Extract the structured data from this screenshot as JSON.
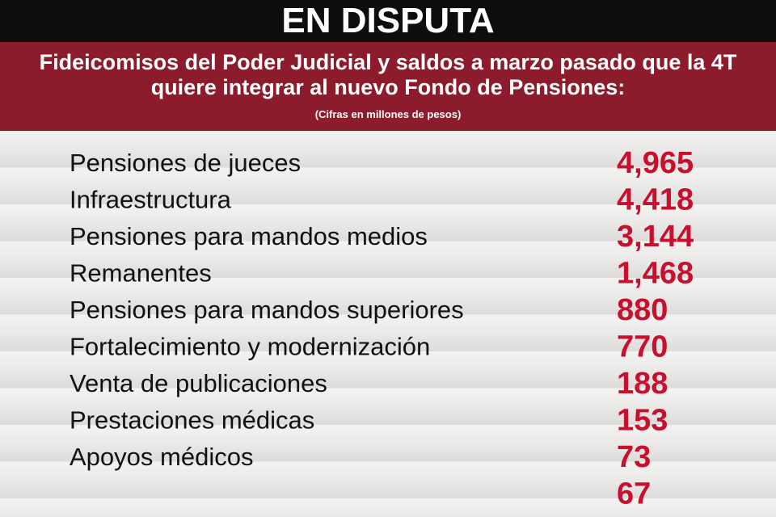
{
  "header": {
    "title": "EN DISPUTA",
    "subtitle": "Fideicomisos del Poder Judicial y saldos a marzo pasado que la 4T quiere integrar al nuevo Fondo de Pensiones:",
    "units": "(Cifras en millones de pesos)"
  },
  "colors": {
    "title_bg": "#0d0d0d",
    "band_bg": "#8c1c2c",
    "value_red": "#c8102e",
    "label_text": "#111111"
  },
  "chart_data": {
    "type": "table",
    "title": "EN DISPUTA",
    "subtitle": "Fideicomisos del Poder Judicial y saldos a marzo pasado que la 4T quiere integrar al nuevo Fondo de Pensiones:",
    "units": "(Cifras en millones de pesos)",
    "rows": [
      {
        "label": "Pensiones de jueces",
        "value": 4965,
        "display": "4,965"
      },
      {
        "label": "Infraestructura",
        "value": 4418,
        "display": "4,418"
      },
      {
        "label": "Pensiones para mandos medios",
        "value": 3144,
        "display": "3,144"
      },
      {
        "label": "Remanentes",
        "value": 1468,
        "display": "1,468"
      },
      {
        "label": "Pensiones para mandos superiores",
        "value": 880,
        "display": "880"
      },
      {
        "label": "Fortalecimiento y modernización",
        "value": 770,
        "display": "770"
      },
      {
        "label": "Venta de publicaciones",
        "value": 188,
        "display": "188"
      },
      {
        "label": "Prestaciones médicas",
        "value": 153,
        "display": "153"
      },
      {
        "label": "Apoyos médicos",
        "value": 73,
        "display": "73"
      },
      {
        "label": "",
        "value": 67,
        "display": "67"
      }
    ]
  }
}
